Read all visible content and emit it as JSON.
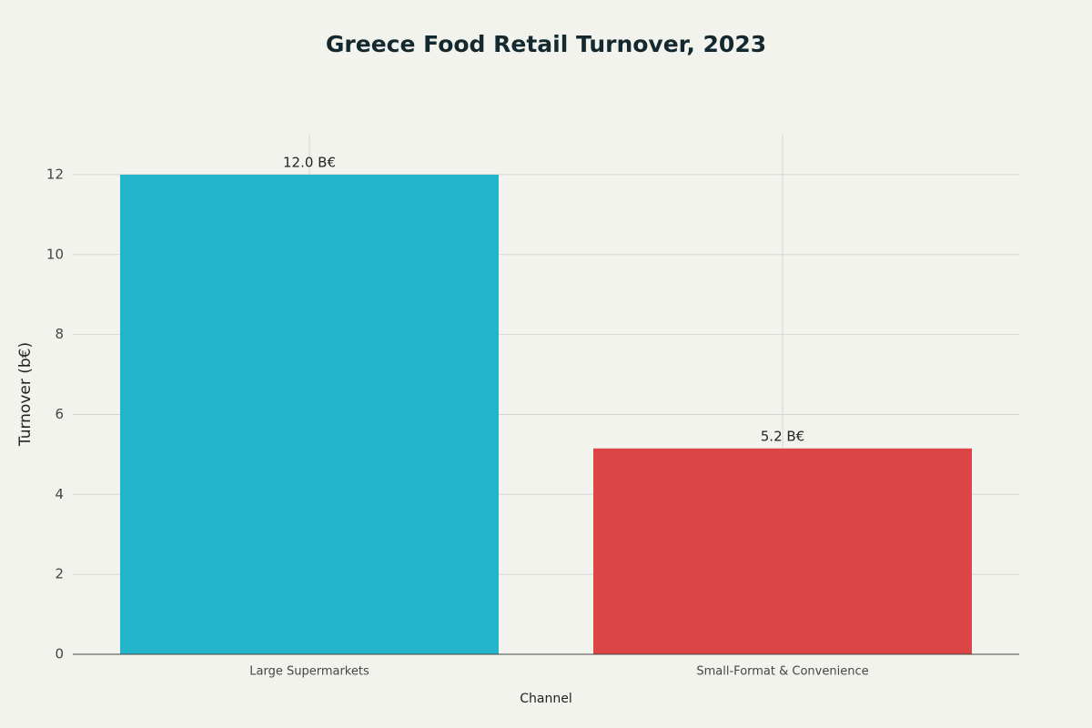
{
  "chart_data": {
    "type": "bar",
    "title": "Greece Food Retail Turnover, 2023",
    "x_label": "Channel",
    "y_label": "Turnover (b€)",
    "categories": [
      "Large Supermarkets",
      "Small-Format & Convenience"
    ],
    "values": [
      12,
      5.15
    ],
    "value_labels": [
      "12.0 B€",
      "5.2 B€"
    ],
    "colors": [
      "#22b5cc",
      "#db4546"
    ],
    "ylim": [
      0,
      13
    ],
    "yticks": [
      0,
      2,
      4,
      6,
      8,
      10,
      12
    ],
    "grid": true
  }
}
